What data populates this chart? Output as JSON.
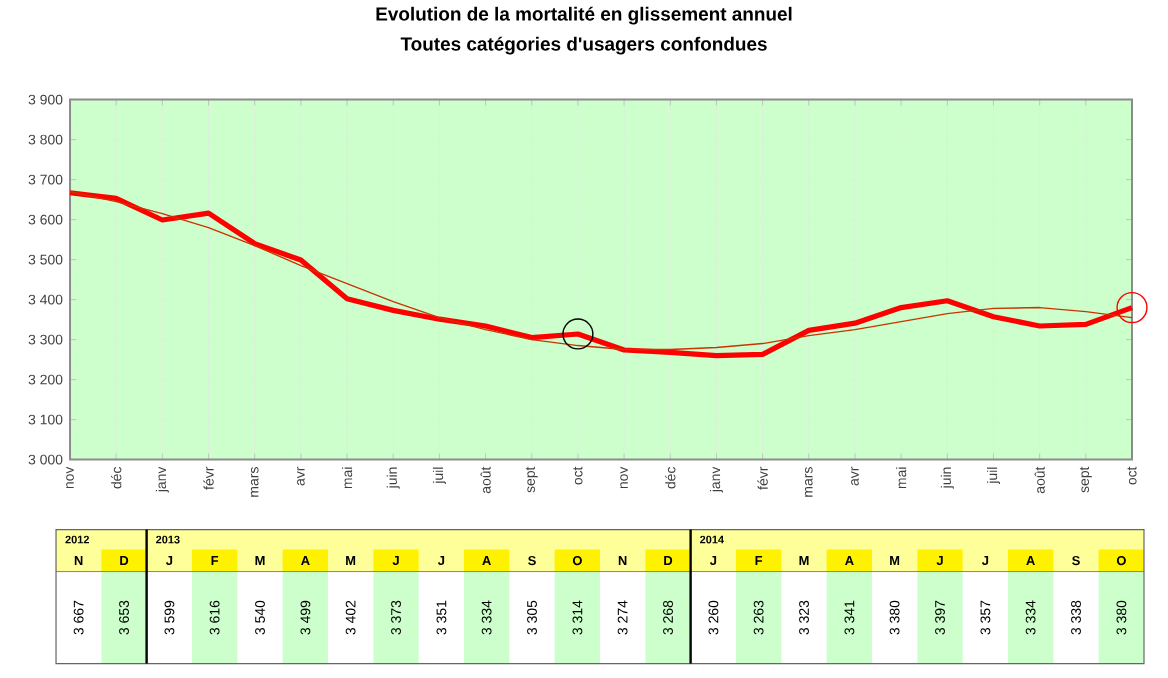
{
  "chart_data": {
    "type": "line",
    "title": "Evolution de la mortalité en glissement annuel",
    "subtitle": "Toutes catégories d'usagers confondues",
    "categories": [
      "nov",
      "déc",
      "janv",
      "févr",
      "mars",
      "avr",
      "mai",
      "juin",
      "juil",
      "août",
      "sept",
      "oct",
      "nov",
      "déc",
      "janv",
      "févr",
      "mars",
      "avr",
      "mai",
      "juin",
      "juil",
      "août",
      "sept",
      "oct"
    ],
    "series": [
      {
        "color": "#ff0000",
        "values": [
          3667,
          3653,
          3599,
          3616,
          3540,
          3499,
          3402,
          3373,
          3351,
          3334,
          3305,
          3314,
          3274,
          3268,
          3260,
          3263,
          3323,
          3341,
          3380,
          3397,
          3357,
          3334,
          3338,
          3380
        ],
        "value_labels": [
          "3 667",
          "3 653",
          "3 599",
          "3 616",
          "3 540",
          "3 499",
          "3 402",
          "3 373",
          "3 351",
          "3 334",
          "3 305",
          "3 314",
          "3 274",
          "3 268",
          "3 260",
          "3 263",
          "3 323",
          "3 341",
          "3 380",
          "3 397",
          "3 357",
          "3 334",
          "3 338",
          "3 380"
        ]
      },
      {
        "color": "#cc3300",
        "values": [
          3670,
          3645,
          3615,
          3580,
          3535,
          3485,
          3440,
          3395,
          3355,
          3325,
          3300,
          3285,
          3275,
          3275,
          3280,
          3290,
          3310,
          3325,
          3345,
          3365,
          3378,
          3380,
          3370,
          3355
        ]
      },
      {
        "type": "scatter",
        "marker": "circle",
        "color": "#000000",
        "values": [
          null,
          null,
          null,
          null,
          null,
          null,
          null,
          null,
          null,
          null,
          null,
          3314,
          null,
          null,
          null,
          null,
          null,
          null,
          null,
          null,
          null,
          null,
          null,
          null
        ]
      },
      {
        "type": "scatter",
        "marker": "circle",
        "color": "#ff0000",
        "values": [
          null,
          null,
          null,
          null,
          null,
          null,
          null,
          null,
          null,
          null,
          null,
          null,
          null,
          null,
          null,
          null,
          null,
          null,
          null,
          null,
          null,
          null,
          null,
          3380
        ]
      }
    ],
    "ylim": [
      3000,
      3900
    ],
    "yticks": [
      {
        "value": 3000,
        "label": "3 000"
      },
      {
        "value": 3100,
        "label": "3 100"
      },
      {
        "value": 3200,
        "label": "3 200"
      },
      {
        "value": 3300,
        "label": "3 300"
      },
      {
        "value": 3400,
        "label": "3 400"
      },
      {
        "value": 3500,
        "label": "3 500"
      },
      {
        "value": 3600,
        "label": "3 600"
      },
      {
        "value": 3700,
        "label": "3 700"
      },
      {
        "value": 3800,
        "label": "3 800"
      },
      {
        "value": 3900,
        "label": "3 900"
      }
    ],
    "grid": true,
    "annotations": [
      "2012",
      "2013",
      "2014",
      "N",
      "D",
      "J",
      "F",
      "M",
      "A",
      "M",
      "J",
      "J",
      "A",
      "S",
      "O",
      "N",
      "D",
      "J",
      "F",
      "M",
      "A",
      "M",
      "J",
      "J",
      "A",
      "S",
      "O"
    ]
  }
}
